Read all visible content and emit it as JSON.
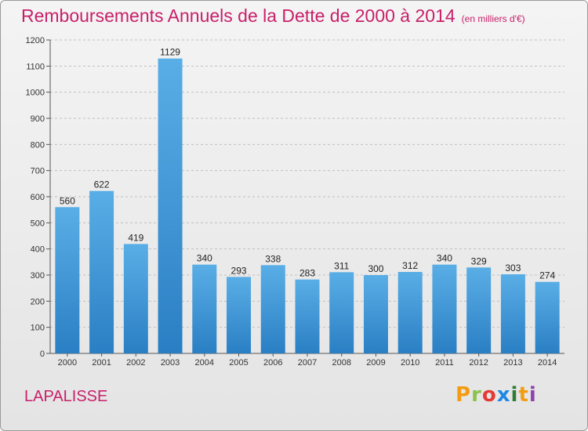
{
  "title": "Remboursements Annuels de la Dette de 2000 à 2014",
  "subtitle": "(en milliers d'€)",
  "commune": "LAPALISSE",
  "logo": {
    "text": "Proxiti",
    "colors": [
      "#f39c12",
      "#8bc34a",
      "#e53935",
      "#1e88e5",
      "#2e7d32",
      "#f39c12",
      "#8e44ad"
    ]
  },
  "colors": {
    "title": "#c8206a",
    "bar_top": "#5aaee6",
    "bar_bottom": "#2a7fc4",
    "grid": "#c0c0c0"
  },
  "chart_data": {
    "type": "bar",
    "title": "Remboursements Annuels de la Dette de 2000 à 2014",
    "categories": [
      "2000",
      "2001",
      "2002",
      "2003",
      "2004",
      "2005",
      "2006",
      "2007",
      "2008",
      "2009",
      "2010",
      "2011",
      "2012",
      "2013",
      "2014"
    ],
    "values": [
      560,
      622,
      419,
      1129,
      340,
      293,
      338,
      283,
      311,
      300,
      312,
      340,
      329,
      303,
      274
    ],
    "ylim": [
      0,
      1200
    ],
    "yticks": [
      0,
      100,
      200,
      300,
      400,
      500,
      600,
      700,
      800,
      900,
      1000,
      1100,
      1200
    ],
    "grid": true
  }
}
